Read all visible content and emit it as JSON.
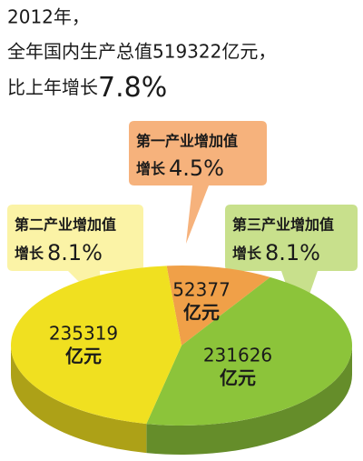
{
  "chart_data": {
    "type": "pie",
    "title_lines": [
      "2012年，",
      "全年国内生产总值519322亿元，",
      "比上年增长"
    ],
    "title_growth": 7.8,
    "title_growth_label": "7.8%",
    "categories": [
      "第一产业增加值",
      "第三产业增加值",
      "第二产业增加值"
    ],
    "values": [
      52377,
      231626,
      235319
    ],
    "unit": "亿元",
    "colors": [
      "#f0a048",
      "#8cc43a",
      "#f0e020"
    ],
    "growth_text": "增长",
    "growth": [
      4.5,
      8.1,
      8.1
    ],
    "growth_labels": [
      "4.5%",
      "8.1%",
      "8.1%"
    ]
  }
}
